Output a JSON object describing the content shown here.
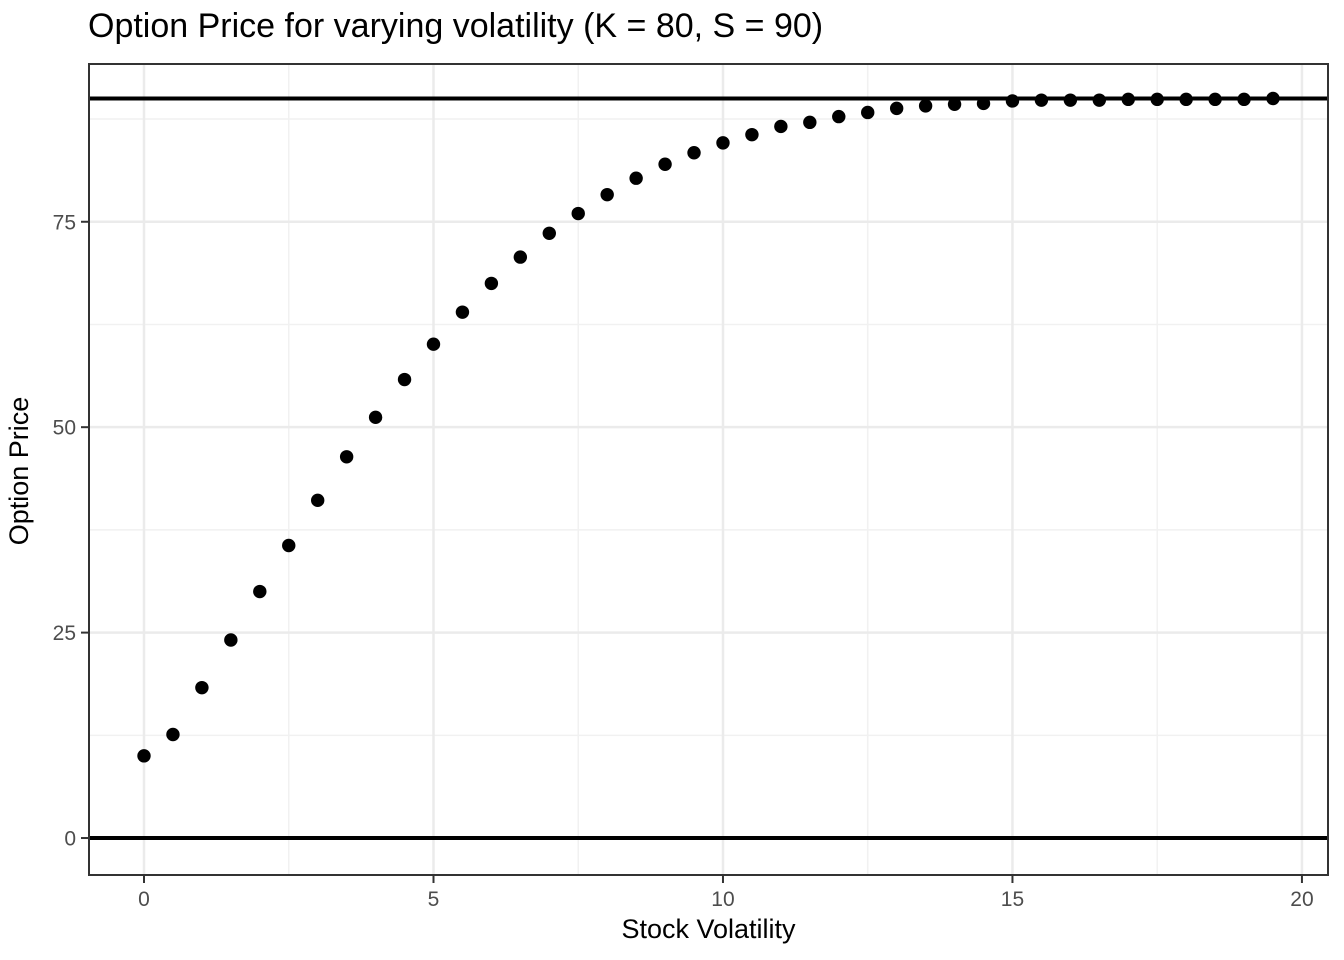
{
  "chart_data": {
    "type": "scatter",
    "title": "Option Price for varying volatility (K = 80, S = 90)",
    "xlabel": "Stock Volatility",
    "ylabel": "Option Price",
    "x": [
      0,
      0.5,
      1,
      1.5,
      2,
      2.5,
      3,
      3.5,
      4,
      4.5,
      5,
      5.5,
      6,
      6.5,
      7,
      7.5,
      8,
      8.5,
      9,
      9.5,
      10,
      10.5,
      11,
      11.5,
      12,
      12.5,
      13,
      13.5,
      14,
      14.5,
      15,
      15.5,
      16,
      16.5,
      17,
      17.5,
      18,
      18.5,
      19,
      19.5
    ],
    "y": [
      10.0,
      12.6,
      18.3,
      24.1,
      30.0,
      35.6,
      41.1,
      46.4,
      51.2,
      55.8,
      60.1,
      64.0,
      67.5,
      70.7,
      73.6,
      76.0,
      78.3,
      80.3,
      82.0,
      83.4,
      84.6,
      85.6,
      86.6,
      87.1,
      87.8,
      88.3,
      88.8,
      89.1,
      89.3,
      89.4,
      89.7,
      89.8,
      89.8,
      89.8,
      89.9,
      89.9,
      89.9,
      89.9,
      89.9,
      90.0
    ],
    "hlines": [
      0,
      90
    ],
    "x_ticks": [
      0,
      5,
      10,
      15,
      20
    ],
    "x_tick_labels": [
      "0",
      "5",
      "10",
      "15",
      "20"
    ],
    "y_ticks": [
      0,
      25,
      50,
      75
    ],
    "y_tick_labels": [
      "0",
      "25",
      "50",
      "75"
    ],
    "x_minor": [
      2.5,
      7.5,
      12.5,
      17.5
    ],
    "y_minor": [
      12.5,
      37.5,
      62.5,
      87.5
    ],
    "xlim": [
      -0.95,
      20.45
    ],
    "ylim": [
      -4.5,
      94.2
    ],
    "grid": "on",
    "legend": "none",
    "point_color": "#000000",
    "colors": {
      "background": "#ffffff",
      "panel_background": "#ffffff",
      "grid_major": "#EBEBEB",
      "grid_minor": "#F1F1F1",
      "panel_border": "#333333",
      "tick_mark": "#333333",
      "tick_label": "#4D4D4D",
      "hline": "#000000",
      "title": "#000000"
    }
  }
}
